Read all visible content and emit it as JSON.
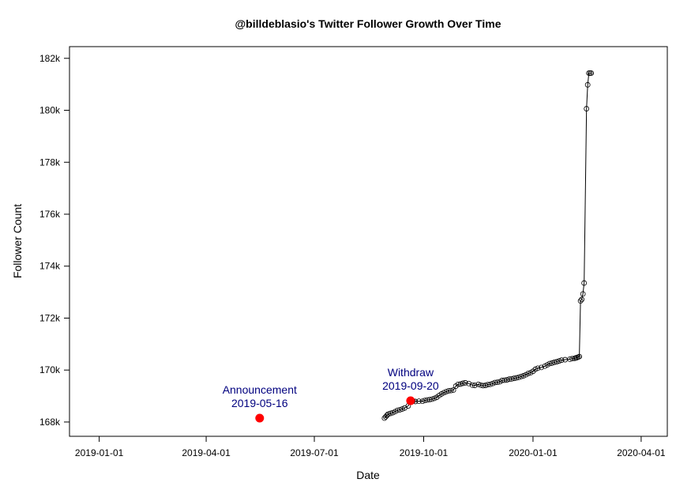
{
  "chart_data": {
    "type": "line",
    "title": "@billdeblasio's Twitter Follower Growth Over Time",
    "xlabel": "Date",
    "ylabel": "Follower Count",
    "xlim": [
      "2018-12-07",
      "2020-04-23"
    ],
    "ylim": [
      167450,
      182450
    ],
    "x_ticks": [
      "2019-01-01",
      "2019-04-01",
      "2019-07-01",
      "2019-10-01",
      "2020-01-01",
      "2020-04-01"
    ],
    "y_ticks": [
      168000,
      170000,
      172000,
      174000,
      176000,
      178000,
      180000,
      182000
    ],
    "y_tick_labels": [
      "168k",
      "170k",
      "172k",
      "174k",
      "176k",
      "178k",
      "180k",
      "182k"
    ],
    "grid": false,
    "legend": "none",
    "series": [
      {
        "x": [
          "2019-08-29",
          "2019-08-30",
          "2019-08-31",
          "2019-09-01",
          "2019-09-03",
          "2019-09-05",
          "2019-09-07",
          "2019-09-09",
          "2019-09-11",
          "2019-09-13",
          "2019-09-15",
          "2019-09-18",
          "2019-09-20",
          "2019-09-22",
          "2019-09-24",
          "2019-09-27",
          "2019-09-30",
          "2019-10-02",
          "2019-10-04",
          "2019-10-06",
          "2019-10-08",
          "2019-10-10",
          "2019-10-12",
          "2019-10-14",
          "2019-10-16",
          "2019-10-18",
          "2019-10-20",
          "2019-10-22",
          "2019-10-24",
          "2019-10-26",
          "2019-10-28",
          "2019-10-30",
          "2019-11-01",
          "2019-11-03",
          "2019-11-05",
          "2019-11-08",
          "2019-11-11",
          "2019-11-13",
          "2019-11-16",
          "2019-11-18",
          "2019-11-20",
          "2019-11-22",
          "2019-11-24",
          "2019-11-26",
          "2019-11-28",
          "2019-11-30",
          "2019-12-02",
          "2019-12-04",
          "2019-12-06",
          "2019-12-08",
          "2019-12-10",
          "2019-12-12",
          "2019-12-14",
          "2019-12-16",
          "2019-12-18",
          "2019-12-20",
          "2019-12-22",
          "2019-12-24",
          "2019-12-26",
          "2019-12-28",
          "2019-12-30",
          "2020-01-01",
          "2020-01-03",
          "2020-01-05",
          "2020-01-08",
          "2020-01-11",
          "2020-01-13",
          "2020-01-15",
          "2020-01-17",
          "2020-01-19",
          "2020-01-21",
          "2020-01-23",
          "2020-01-25",
          "2020-01-28",
          "2020-02-01",
          "2020-02-03",
          "2020-02-05",
          "2020-02-06",
          "2020-02-07",
          "2020-02-08",
          "2020-02-09",
          "2020-02-10",
          "2020-02-11",
          "2020-02-12",
          "2020-02-13",
          "2020-02-15",
          "2020-02-16",
          "2020-02-17",
          "2020-02-18",
          "2020-02-19"
        ],
        "y": [
          168150,
          168200,
          168250,
          168300,
          168330,
          168360,
          168400,
          168450,
          168470,
          168500,
          168540,
          168620,
          168820,
          168810,
          168790,
          168800,
          168800,
          168830,
          168850,
          168860,
          168880,
          168910,
          168950,
          169020,
          169080,
          169130,
          169170,
          169200,
          169210,
          169230,
          169380,
          169450,
          169460,
          169490,
          169510,
          169480,
          169420,
          169410,
          169450,
          169420,
          169400,
          169410,
          169440,
          169450,
          169480,
          169520,
          169530,
          169550,
          169600,
          169610,
          169620,
          169650,
          169660,
          169680,
          169700,
          169720,
          169750,
          169780,
          169820,
          169870,
          169900,
          169950,
          170030,
          170070,
          170100,
          170150,
          170200,
          170250,
          170270,
          170300,
          170320,
          170350,
          170380,
          170400,
          170420,
          170440,
          170450,
          170470,
          170480,
          170500,
          170520,
          172660,
          172720,
          172930,
          173350,
          180060,
          180980,
          181430,
          181430,
          181430
        ]
      }
    ],
    "events": [
      {
        "label": "Announcement",
        "date": "2019-05-16",
        "value": 168150,
        "color": "#ff0000"
      },
      {
        "label": "Withdraw",
        "date": "2019-09-20",
        "value": 168820,
        "color": "#ff0000"
      }
    ],
    "colors": {
      "line": "#000000",
      "event_point": "#ff0000",
      "annotation_text": "#00007f"
    }
  }
}
